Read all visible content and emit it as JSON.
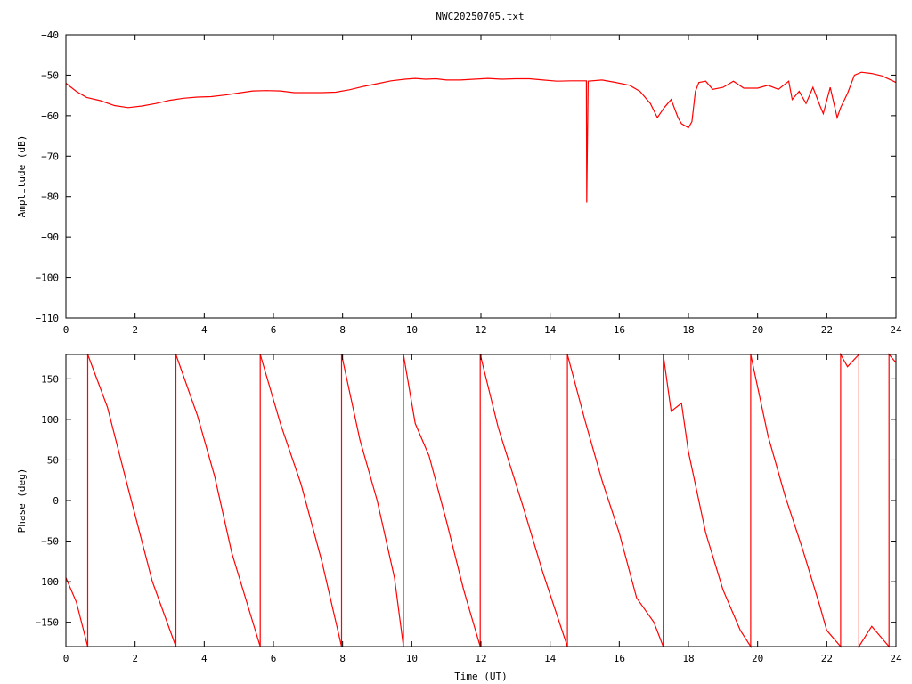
{
  "title": "NWC20250705.txt",
  "colors": {
    "trace": "#ff0000",
    "axes": "#000000",
    "background": "#ffffff"
  },
  "chart_data": [
    {
      "type": "line",
      "title": "NWC20250705.txt",
      "xlabel": "",
      "ylabel": "Amplitude (dB)",
      "xlim": [
        0,
        24
      ],
      "ylim": [
        -110,
        -40
      ],
      "x_ticks": [
        0,
        2,
        4,
        6,
        8,
        10,
        12,
        14,
        16,
        18,
        20,
        22,
        24
      ],
      "y_ticks": [
        -110,
        -100,
        -90,
        -80,
        -70,
        -60,
        -50,
        -40
      ],
      "x_tick_labels": [
        "0",
        "2",
        "4",
        "6",
        "8",
        "10",
        "12",
        "14",
        "16",
        "18",
        "20",
        "22",
        "24"
      ],
      "y_tick_labels": [
        "−110",
        "−100",
        "−90",
        "−80",
        "−70",
        "−60",
        "−50",
        "−40"
      ],
      "grid": false,
      "series": [
        {
          "x": [
            0,
            0.3,
            0.6,
            1.0,
            1.4,
            1.8,
            2.2,
            2.6,
            3.0,
            3.4,
            3.8,
            4.2,
            4.6,
            5.0,
            5.4,
            5.8,
            6.2,
            6.6,
            7.0,
            7.4,
            7.8,
            8.2,
            8.6,
            9.0,
            9.4,
            9.8,
            10.1,
            10.4,
            10.7,
            11.0,
            11.4,
            11.8,
            12.2,
            12.6,
            13.0,
            13.4,
            13.8,
            14.2,
            14.6,
            15.0,
            15.05,
            15.06,
            15.1,
            15.5,
            15.9,
            16.3,
            16.6,
            16.9,
            17.1,
            17.3,
            17.5,
            17.7,
            17.8,
            18.0,
            18.1,
            18.2,
            18.3,
            18.5,
            18.7,
            19.0,
            19.3,
            19.6,
            20.0,
            20.3,
            20.6,
            20.9,
            21.0,
            21.2,
            21.4,
            21.6,
            21.8,
            21.9,
            22.1,
            22.3,
            22.4,
            22.6,
            22.8,
            23.0,
            23.3,
            23.6,
            24.0
          ],
          "values": [
            -52,
            -54,
            -55.5,
            -56.3,
            -57.5,
            -58,
            -57.6,
            -57,
            -56.2,
            -55.7,
            -55.4,
            -55.3,
            -54.9,
            -54.4,
            -53.9,
            -53.8,
            -53.9,
            -54.3,
            -54.3,
            -54.3,
            -54.2,
            -53.6,
            -52.8,
            -52.1,
            -51.4,
            -51,
            -50.8,
            -51,
            -50.9,
            -51.2,
            -51.2,
            -51,
            -50.8,
            -51,
            -50.9,
            -50.9,
            -51.2,
            -51.5,
            -51.4,
            -51.4,
            -51.4,
            -81.5,
            -51.5,
            -51.2,
            -51.8,
            -52.5,
            -54,
            -57,
            -60.5,
            -58,
            -56,
            -60.5,
            -62,
            -63,
            -61.5,
            -54,
            -51.8,
            -51.5,
            -53.5,
            -53,
            -51.5,
            -53.2,
            -53.2,
            -52.5,
            -53.5,
            -51.5,
            -56,
            -54,
            -57,
            -53,
            -57.5,
            -59.5,
            -53,
            -60.5,
            -58,
            -54.5,
            -50,
            -49.3,
            -49.6,
            -50.2,
            -51.8
          ]
        }
      ]
    },
    {
      "type": "line",
      "title": "",
      "xlabel": "Time (UT)",
      "ylabel": "Phase (deg)",
      "xlim": [
        0,
        24
      ],
      "ylim": [
        -180,
        180
      ],
      "x_ticks": [
        0,
        2,
        4,
        6,
        8,
        10,
        12,
        14,
        16,
        18,
        20,
        22,
        24
      ],
      "y_ticks": [
        -150,
        -100,
        -50,
        0,
        50,
        100,
        150
      ],
      "x_tick_labels": [
        "0",
        "2",
        "4",
        "6",
        "8",
        "10",
        "12",
        "14",
        "16",
        "18",
        "20",
        "22",
        "24"
      ],
      "y_tick_labels": [
        "−150",
        "−100",
        "−50",
        "0",
        "50",
        "100",
        "150"
      ],
      "grid": false,
      "series": [
        {
          "x": [
            0,
            0.3,
            0.63,
            0.63,
            1.2,
            1.8,
            2.5,
            3.18,
            3.18,
            3.8,
            4.3,
            4.8,
            5.62,
            5.62,
            6.2,
            6.8,
            7.4,
            7.97,
            7.97,
            8.5,
            9.0,
            9.5,
            9.76,
            9.76,
            10.1,
            10.5,
            11.0,
            11.5,
            11.98,
            11.98,
            12.5,
            13.2,
            13.8,
            14.5,
            14.5,
            15.0,
            15.5,
            16.0,
            16.5,
            17.0,
            17.27,
            17.27,
            17.5,
            17.8,
            18.0,
            18.5,
            19.0,
            19.5,
            19.8,
            19.8,
            20.3,
            20.8,
            21.3,
            21.8,
            22.0,
            22.4,
            22.4,
            22.6,
            22.93,
            22.93,
            23.3,
            23.8,
            23.8,
            24.0
          ],
          "values": [
            -95,
            -125,
            -180,
            180,
            115,
            15,
            -100,
            -180,
            180,
            105,
            30,
            -65,
            -180,
            180,
            95,
            20,
            -75,
            -180,
            180,
            75,
            0,
            -95,
            -180,
            180,
            95,
            55,
            -25,
            -110,
            -180,
            180,
            90,
            -5,
            -90,
            -180,
            180,
            100,
            25,
            -40,
            -120,
            -150,
            -180,
            180,
            110,
            120,
            60,
            -40,
            -110,
            -160,
            -180,
            180,
            80,
            5,
            -60,
            -130,
            -160,
            -180,
            180,
            165,
            180,
            -180,
            -155,
            -180,
            180,
            170
          ]
        }
      ]
    }
  ]
}
